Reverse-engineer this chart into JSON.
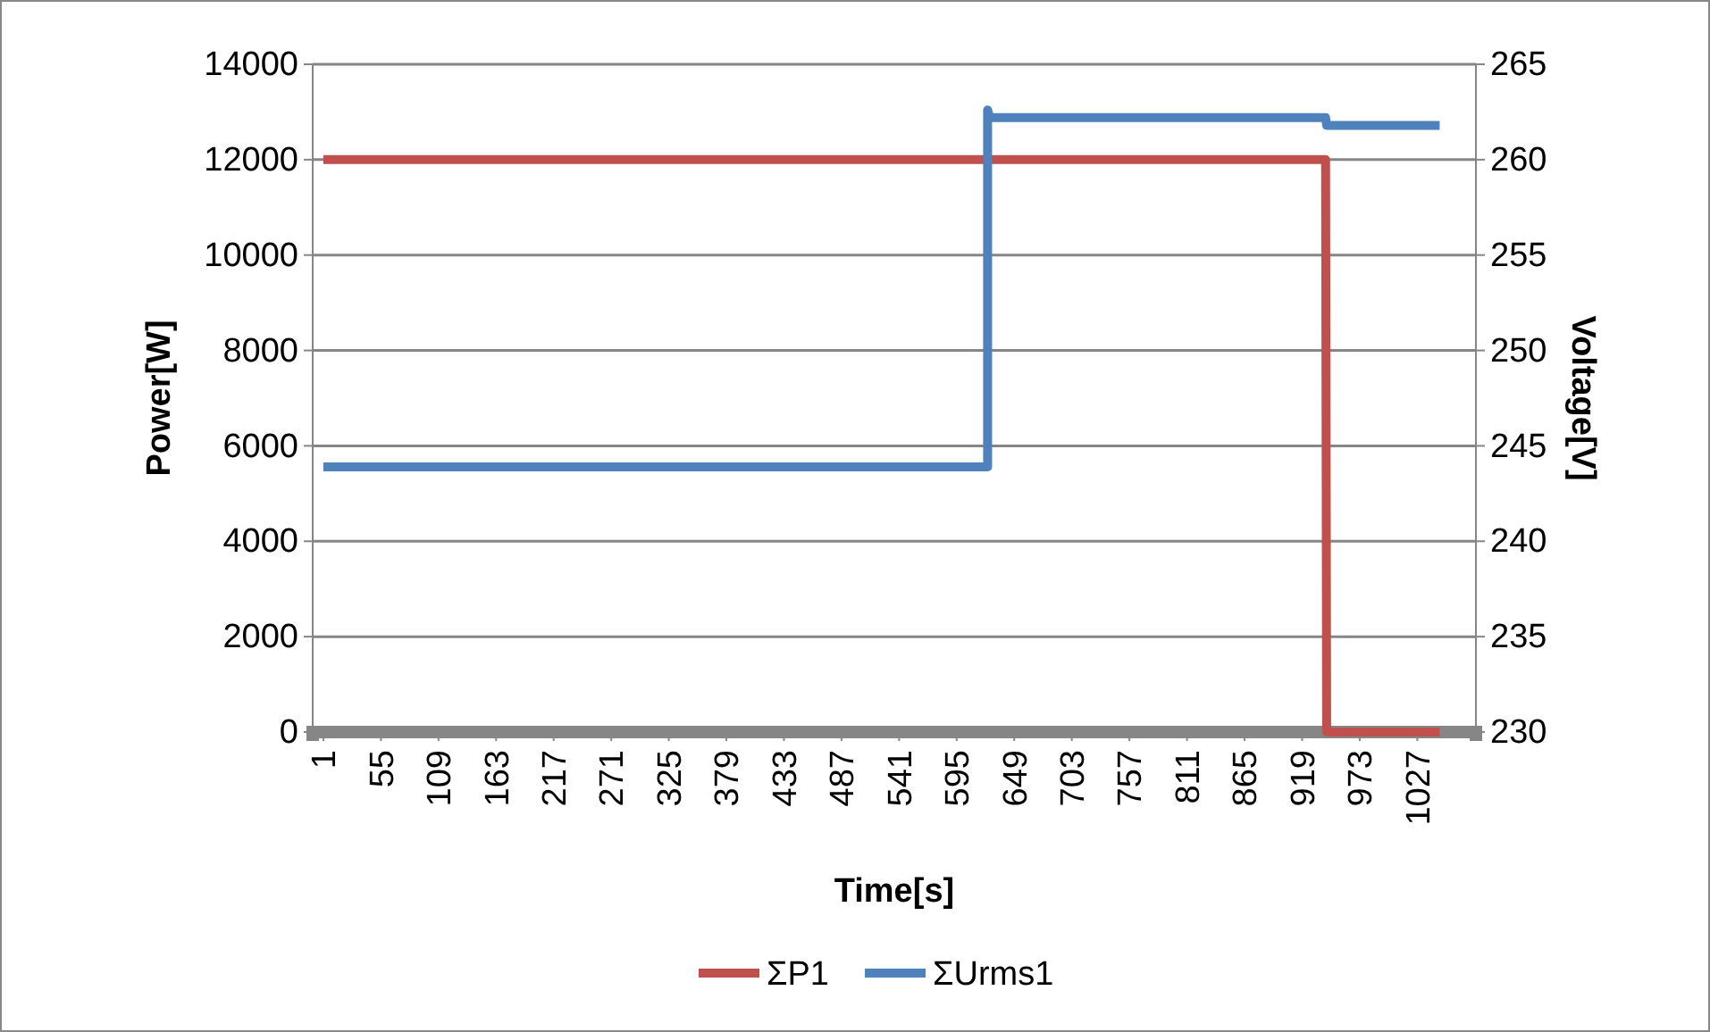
{
  "chart_data": {
    "type": "line",
    "xlabel": "Time[s]",
    "ylabel": "Power[W]",
    "y2label": "Voltage[V]",
    "xlim": [
      -9,
      1082
    ],
    "xticks": [
      1,
      55,
      109,
      163,
      217,
      271,
      325,
      379,
      433,
      487,
      541,
      595,
      649,
      703,
      757,
      811,
      865,
      919,
      973,
      1027
    ],
    "ylim": [
      0,
      14000
    ],
    "yticks": [
      0,
      2000,
      4000,
      6000,
      8000,
      10000,
      12000,
      14000
    ],
    "y2lim": [
      230,
      265
    ],
    "y2ticks": [
      230,
      235,
      240,
      245,
      250,
      255,
      260,
      265
    ],
    "grid": "y",
    "legend": "bottom",
    "marker": "none",
    "line_style": "solid",
    "series": [
      {
        "name": "ΣP1",
        "color": "#c0504d",
        "x": [
          1,
          941,
          942,
          1048
        ],
        "values": [
          12000,
          12000,
          0,
          0
        ]
      },
      {
        "name": "ΣUrms1",
        "color": "#4f81bd",
        "axis": "y2",
        "x": [
          1,
          624,
          624,
          626,
          941,
          942,
          943,
          1048
        ],
        "values": [
          243.9,
          243.9,
          262.6,
          262.2,
          262.2,
          261.8,
          261.8,
          261.8
        ]
      }
    ]
  }
}
